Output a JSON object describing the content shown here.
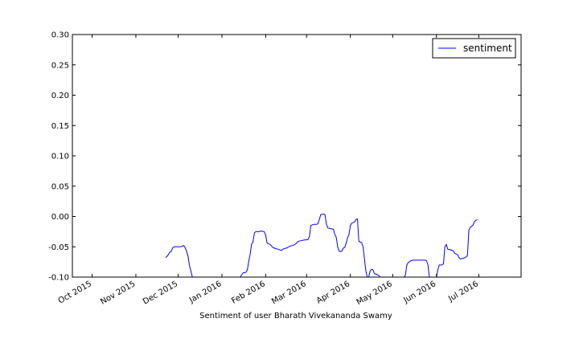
{
  "chart_data": {
    "type": "line",
    "xlabel": "Sentiment of user Bharath Vivekananda Swamy",
    "ylabel": "",
    "title": "",
    "xlim": [
      "2015-09-17",
      "2016-07-31"
    ],
    "ylim": [
      -0.1,
      0.3
    ],
    "y_ticks": [
      "0.30",
      "0.25",
      "0.20",
      "0.15",
      "0.10",
      "0.05",
      "0.00",
      "-0.05",
      "-0.10"
    ],
    "x_ticks": [
      {
        "date": "2015-10-01",
        "label": "Oct 2015"
      },
      {
        "date": "2015-11-01",
        "label": "Nov 2015"
      },
      {
        "date": "2015-12-01",
        "label": "Dec 2015"
      },
      {
        "date": "2016-01-01",
        "label": "Jan 2016"
      },
      {
        "date": "2016-02-01",
        "label": "Feb 2016"
      },
      {
        "date": "2016-03-01",
        "label": "Mar 2016"
      },
      {
        "date": "2016-04-01",
        "label": "Apr 2016"
      },
      {
        "date": "2016-05-01",
        "label": "May 2016"
      },
      {
        "date": "2016-06-01",
        "label": "Jun 2016"
      },
      {
        "date": "2016-07-01",
        "label": "Jul 2016"
      }
    ],
    "legend": {
      "position": "top-right",
      "entries": [
        "sentiment"
      ]
    },
    "grid": false,
    "series": [
      {
        "name": "sentiment",
        "color": "#0000ff",
        "points": [
          [
            "2015-11-22",
            -0.068
          ],
          [
            "2015-11-23",
            -0.066
          ],
          [
            "2015-11-24",
            -0.063
          ],
          [
            "2015-11-25",
            -0.059
          ],
          [
            "2015-11-26",
            -0.058
          ],
          [
            "2015-11-27",
            -0.052
          ],
          [
            "2015-11-28",
            -0.05
          ],
          [
            "2015-11-30",
            -0.05
          ],
          [
            "2015-12-02",
            -0.05
          ],
          [
            "2015-12-04",
            -0.049
          ],
          [
            "2015-12-05",
            -0.048
          ],
          [
            "2015-12-06",
            -0.052
          ],
          [
            "2015-12-07",
            -0.058
          ],
          [
            "2015-12-08",
            -0.066
          ],
          [
            "2015-12-09",
            -0.081
          ],
          [
            "2015-12-10",
            -0.09
          ],
          [
            "2015-12-11",
            -0.1
          ],
          null,
          [
            "2016-01-14",
            -0.1
          ],
          [
            "2016-01-15",
            -0.096
          ],
          [
            "2016-01-16",
            -0.093
          ],
          [
            "2016-01-18",
            -0.092
          ],
          [
            "2016-01-19",
            -0.088
          ],
          [
            "2016-01-20",
            -0.074
          ],
          [
            "2016-01-21",
            -0.062
          ],
          [
            "2016-01-22",
            -0.046
          ],
          [
            "2016-01-23",
            -0.042
          ],
          [
            "2016-01-24",
            -0.027
          ],
          [
            "2016-01-25",
            -0.025
          ],
          [
            "2016-01-27",
            -0.025
          ],
          [
            "2016-01-29",
            -0.024
          ],
          [
            "2016-01-31",
            -0.025
          ],
          [
            "2016-02-01",
            -0.031
          ],
          [
            "2016-02-02",
            -0.044
          ],
          [
            "2016-02-04",
            -0.046
          ],
          [
            "2016-02-06",
            -0.051
          ],
          [
            "2016-02-08",
            -0.053
          ],
          [
            "2016-02-10",
            -0.054
          ],
          [
            "2016-02-12",
            -0.056
          ],
          [
            "2016-02-14",
            -0.053
          ],
          [
            "2016-02-16",
            -0.052
          ],
          [
            "2016-02-18",
            -0.049
          ],
          [
            "2016-02-20",
            -0.048
          ],
          [
            "2016-02-22",
            -0.046
          ],
          [
            "2016-02-24",
            -0.041
          ],
          [
            "2016-02-26",
            -0.04
          ],
          [
            "2016-02-28",
            -0.039
          ],
          [
            "2016-03-02",
            -0.038
          ],
          [
            "2016-03-03",
            -0.033
          ],
          [
            "2016-03-04",
            -0.015
          ],
          [
            "2016-03-06",
            -0.013
          ],
          [
            "2016-03-08",
            -0.013
          ],
          [
            "2016-03-09",
            -0.012
          ],
          [
            "2016-03-10",
            -0.005
          ],
          [
            "2016-03-11",
            0.003
          ],
          [
            "2016-03-13",
            0.004
          ],
          [
            "2016-03-14",
            0.003
          ],
          [
            "2016-03-15",
            -0.012
          ],
          [
            "2016-03-16",
            -0.019
          ],
          [
            "2016-03-18",
            -0.02
          ],
          [
            "2016-03-20",
            -0.021
          ],
          [
            "2016-03-21",
            -0.03
          ],
          [
            "2016-03-22",
            -0.034
          ],
          [
            "2016-03-23",
            -0.05
          ],
          [
            "2016-03-24",
            -0.057
          ],
          [
            "2016-03-25",
            -0.058
          ],
          [
            "2016-03-26",
            -0.057
          ],
          [
            "2016-03-27",
            -0.052
          ],
          [
            "2016-03-28",
            -0.051
          ],
          [
            "2016-03-29",
            -0.044
          ],
          [
            "2016-03-30",
            -0.035
          ],
          [
            "2016-03-31",
            -0.03
          ],
          [
            "2016-04-01",
            -0.015
          ],
          [
            "2016-04-02",
            -0.011
          ],
          [
            "2016-04-04",
            -0.009
          ],
          [
            "2016-04-05",
            -0.005
          ],
          [
            "2016-04-06",
            -0.004
          ],
          [
            "2016-04-07",
            -0.041
          ],
          [
            "2016-04-09",
            -0.043
          ],
          [
            "2016-04-10",
            -0.05
          ],
          [
            "2016-04-11",
            -0.07
          ],
          [
            "2016-04-12",
            -0.09
          ],
          [
            "2016-04-13",
            -0.1
          ],
          [
            "2016-04-14",
            -0.1
          ],
          [
            "2016-04-15",
            -0.09
          ],
          [
            "2016-04-16",
            -0.087
          ],
          [
            "2016-04-17",
            -0.088
          ],
          [
            "2016-04-18",
            -0.094
          ],
          [
            "2016-04-20",
            -0.096
          ],
          [
            "2016-04-21",
            -0.097
          ],
          [
            "2016-04-22",
            -0.1
          ],
          null,
          [
            "2016-05-09",
            -0.1
          ],
          [
            "2016-05-10",
            -0.097
          ],
          [
            "2016-05-11",
            -0.08
          ],
          [
            "2016-05-12",
            -0.076
          ],
          [
            "2016-05-14",
            -0.073
          ],
          [
            "2016-05-16",
            -0.072
          ],
          [
            "2016-05-20",
            -0.072
          ],
          [
            "2016-05-24",
            -0.072
          ],
          [
            "2016-05-25",
            -0.073
          ],
          [
            "2016-05-26",
            -0.08
          ],
          [
            "2016-05-27",
            -0.1
          ],
          null,
          [
            "2016-06-01",
            -0.1
          ],
          [
            "2016-06-02",
            -0.088
          ],
          [
            "2016-06-03",
            -0.08
          ],
          [
            "2016-06-05",
            -0.08
          ],
          [
            "2016-06-06",
            -0.078
          ],
          [
            "2016-06-07",
            -0.05
          ],
          [
            "2016-06-08",
            -0.046
          ],
          [
            "2016-06-09",
            -0.054
          ],
          [
            "2016-06-11",
            -0.055
          ],
          [
            "2016-06-13",
            -0.057
          ],
          [
            "2016-06-14",
            -0.061
          ],
          [
            "2016-06-16",
            -0.063
          ],
          [
            "2016-06-17",
            -0.068
          ],
          [
            "2016-06-18",
            -0.07
          ],
          [
            "2016-06-20",
            -0.069
          ],
          [
            "2016-06-22",
            -0.067
          ],
          [
            "2016-06-23",
            -0.064
          ],
          [
            "2016-06-24",
            -0.022
          ],
          [
            "2016-06-25",
            -0.018
          ],
          [
            "2016-06-27",
            -0.014
          ],
          [
            "2016-06-28",
            -0.008
          ],
          [
            "2016-06-30",
            -0.005
          ]
        ]
      }
    ]
  }
}
